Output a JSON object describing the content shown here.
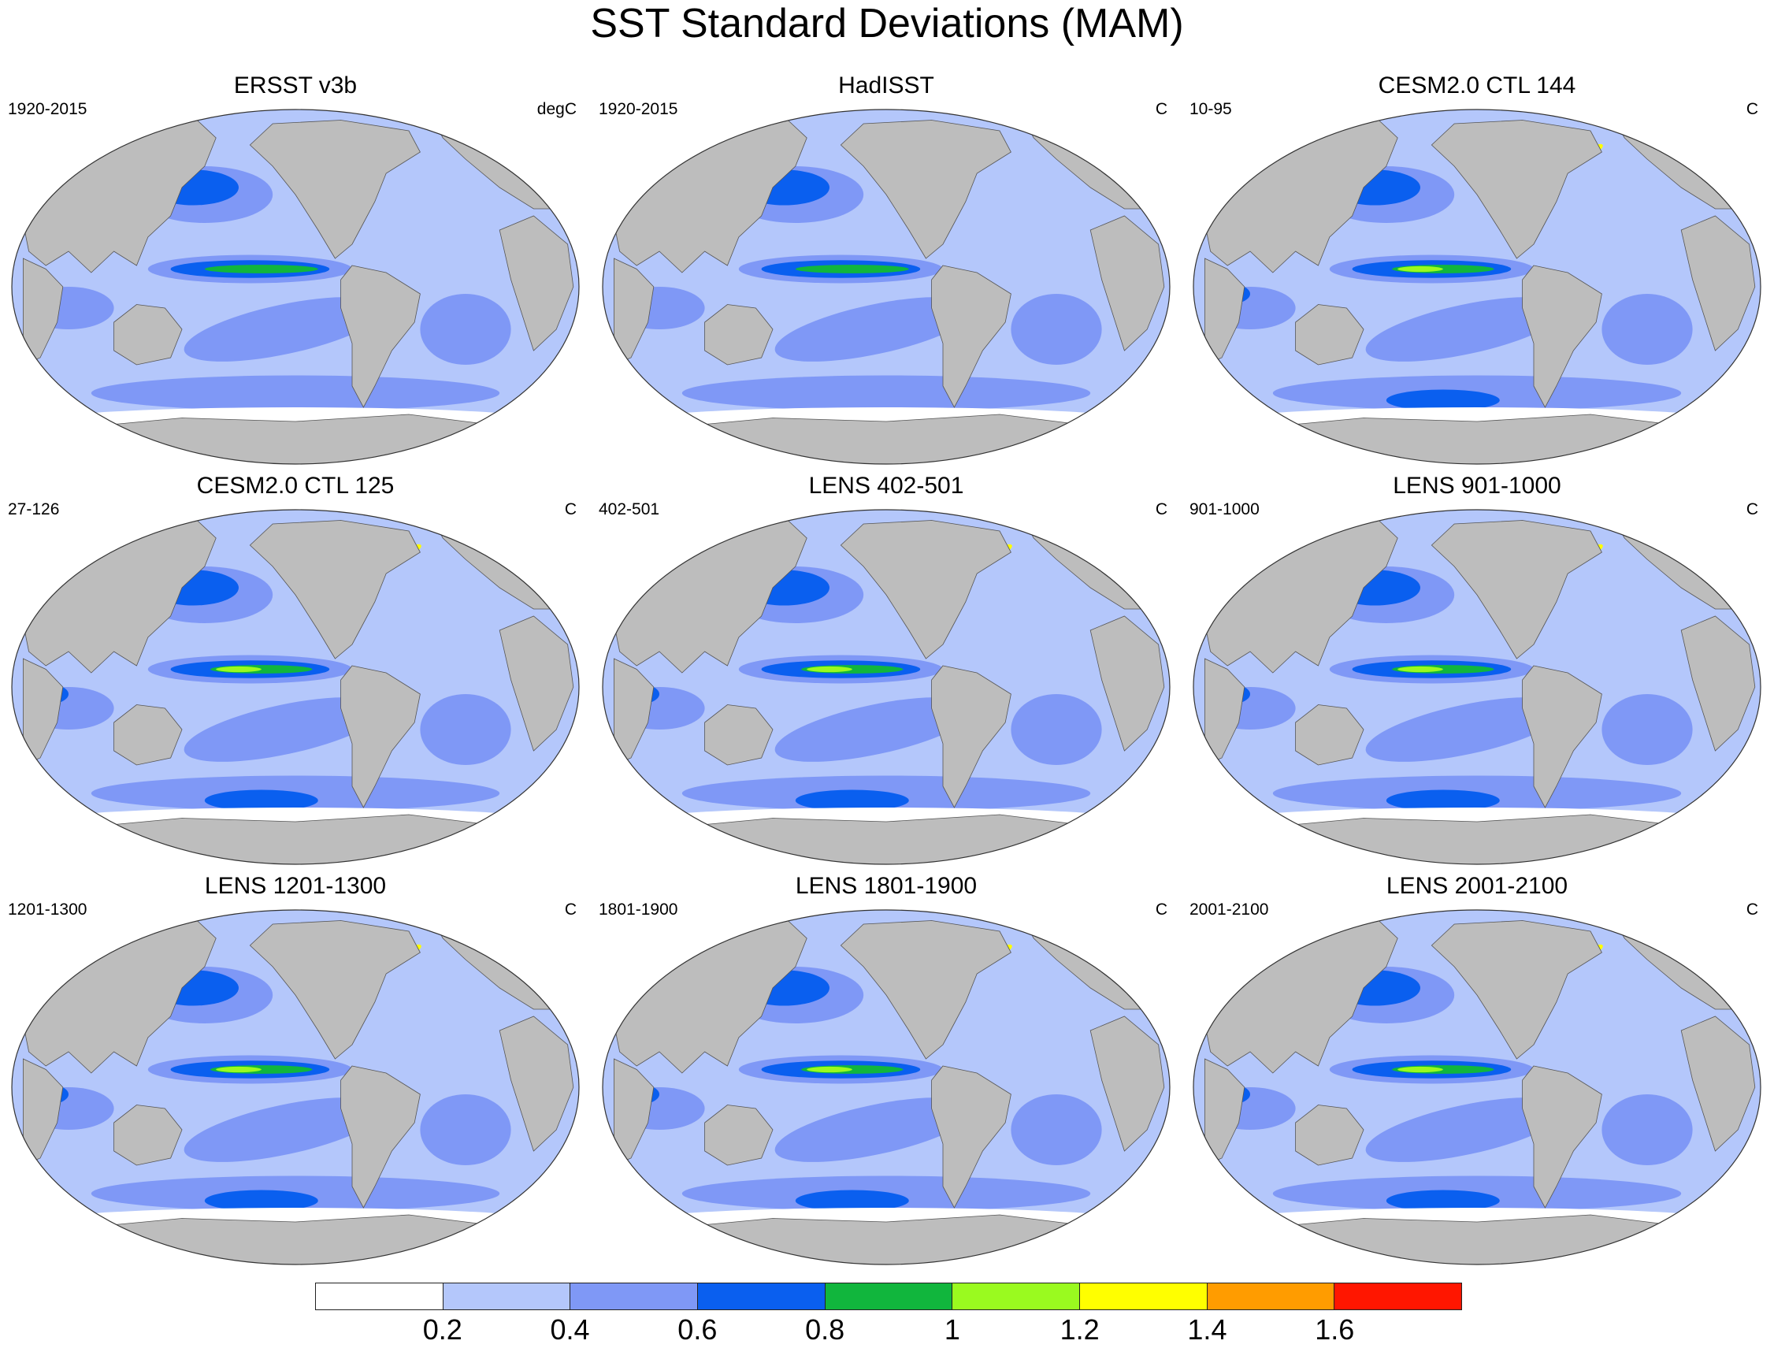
{
  "title": "SST Standard Deviations (MAM)",
  "colors": {
    "land": "#bdbdbd",
    "white": "#ffffff",
    "level_0_2_0_4": "#b4c7fb",
    "level_0_4_0_6": "#7f98f6",
    "level_0_6_0_8": "#0a5fef",
    "level_0_8_1_0": "#11b63d",
    "level_1_0_1_2": "#9afa1f",
    "level_1_2_1_4": "#ffff00",
    "level_1_4_1_6": "#ff9c00",
    "level_1_6_plus": "#ff1600"
  },
  "panels": [
    {
      "title": "ERSST v3b",
      "left_label": "1920-2015",
      "right_label": "degC"
    },
    {
      "title": "HadISST",
      "left_label": "1920-2015",
      "right_label": "C"
    },
    {
      "title": "CESM2.0 CTL 144",
      "left_label": "10-95",
      "right_label": "C"
    },
    {
      "title": "CESM2.0 CTL 125",
      "left_label": "27-126",
      "right_label": "C"
    },
    {
      "title": "LENS 402-501",
      "left_label": "402-501",
      "right_label": "C"
    },
    {
      "title": "LENS 901-1000",
      "left_label": "901-1000",
      "right_label": "C"
    },
    {
      "title": "LENS 1201-1300",
      "left_label": "1201-1300",
      "right_label": "C"
    },
    {
      "title": "LENS 1801-1900",
      "left_label": "1801-1900",
      "right_label": "C"
    },
    {
      "title": "LENS 2001-2100",
      "left_label": "2001-2100",
      "right_label": "C"
    }
  ],
  "colorbar": {
    "colors": [
      "#ffffff",
      "#b4c7fb",
      "#7f98f6",
      "#0a5fef",
      "#11b63d",
      "#9afa1f",
      "#ffff00",
      "#ff9c00",
      "#ff1600"
    ],
    "labels": [
      "0.2",
      "0.4",
      "0.6",
      "0.8",
      "1",
      "1.2",
      "1.4",
      "1.6"
    ]
  }
}
